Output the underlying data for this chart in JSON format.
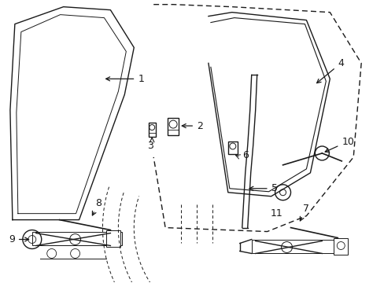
{
  "bg_color": "#ffffff",
  "line_color": "#1a1a1a",
  "text_color": "#1a1a1a",
  "fig_width": 4.89,
  "fig_height": 3.6,
  "dpi": 100
}
